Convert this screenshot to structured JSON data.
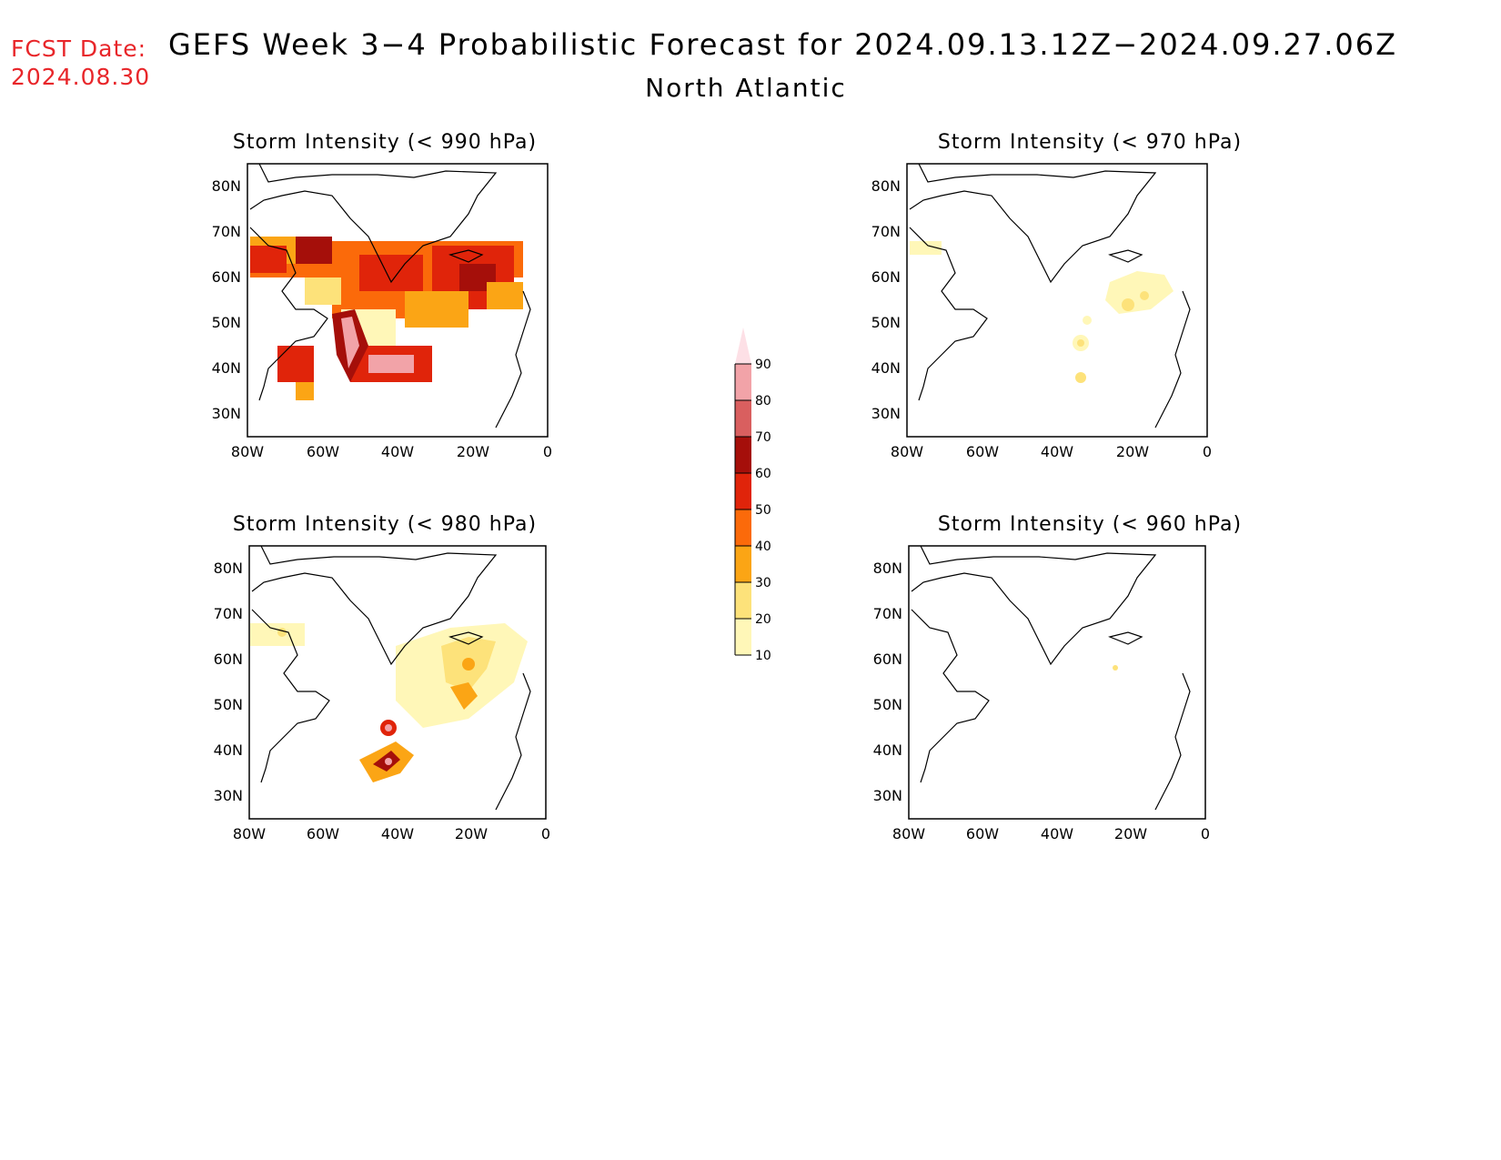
{
  "header": {
    "fcst_label": "FCST Date:",
    "fcst_date": "2024.08.30",
    "title": "GEFS Week 3−4 Probabilistic Forecast for 2024.09.13.12Z−2024.09.27.06Z",
    "region": "North Atlantic"
  },
  "axes": {
    "lat_ticks": [
      "80N",
      "70N",
      "60N",
      "50N",
      "40N",
      "30N"
    ],
    "lon_ticks": [
      "80W",
      "60W",
      "40W",
      "20W",
      "0"
    ]
  },
  "panels": [
    {
      "title": "Storm Intensity (< 990 hPa)",
      "coverage": "high"
    },
    {
      "title": "Storm Intensity (< 970 hPa)",
      "coverage": "low"
    },
    {
      "title": "Storm Intensity (< 980 hPa)",
      "coverage": "medium"
    },
    {
      "title": "Storm Intensity (< 960 hPa)",
      "coverage": "minimal"
    }
  ],
  "colorbar": {
    "levels": [
      "10",
      "20",
      "30",
      "40",
      "50",
      "60",
      "70",
      "80",
      "90"
    ],
    "colors": [
      "#fff7b8",
      "#fde27a",
      "#fba515",
      "#fb6a0a",
      "#e0240a",
      "#a50f0a",
      "#d95f5f",
      "#f2a3a8",
      "#fde0e6"
    ]
  }
}
